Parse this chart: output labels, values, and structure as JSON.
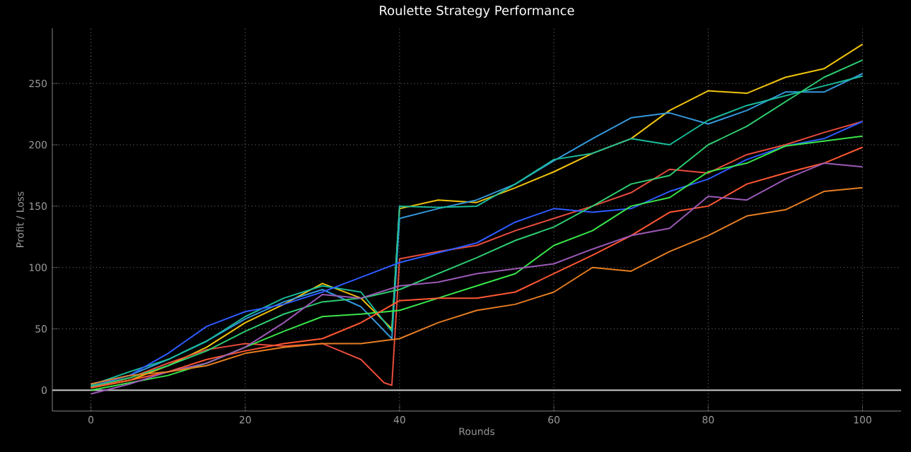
{
  "chart_data": {
    "type": "line",
    "title": "Roulette Strategy Performance",
    "xlabel": "Rounds",
    "ylabel": "Profit / Loss",
    "x": [
      0,
      5,
      10,
      15,
      20,
      25,
      30,
      35,
      40,
      45,
      50,
      55,
      60,
      65,
      70,
      75,
      80,
      85,
      90,
      95,
      100
    ],
    "xlim": [
      -5,
      105
    ],
    "ylim": [
      -17,
      295
    ],
    "xticks": [
      0,
      20,
      40,
      60,
      80,
      100
    ],
    "yticks": [
      0,
      50,
      100,
      150,
      200,
      250
    ],
    "grid": true,
    "marker": "none",
    "line_style": "solid",
    "ref_lines": [
      {
        "axis": "y",
        "value": 0,
        "color": "#cccccc"
      }
    ],
    "series": [
      {
        "color": "#f1c40f",
        "x": [
          0,
          5,
          10,
          15,
          20,
          25,
          30,
          35,
          39,
          40,
          45,
          50,
          55,
          60,
          65,
          70,
          75,
          80,
          85,
          90,
          95,
          100
        ],
        "values": [
          2,
          8,
          20,
          35,
          55,
          70,
          87,
          75,
          50,
          148,
          155,
          153,
          165,
          178,
          193,
          205,
          228,
          244,
          242,
          255,
          262,
          282
        ]
      },
      {
        "color": "#3498db",
        "x": [
          0,
          5,
          10,
          15,
          20,
          25,
          30,
          35,
          39,
          40,
          45,
          50,
          55,
          60,
          65,
          70,
          75,
          80,
          85,
          90,
          95,
          100
        ],
        "values": [
          5,
          12,
          25,
          40,
          58,
          72,
          82,
          68,
          42,
          140,
          148,
          155,
          168,
          187,
          205,
          222,
          226,
          217,
          228,
          243,
          243,
          258
        ]
      },
      {
        "color": "#1abc9c",
        "x": [
          0,
          5,
          10,
          15,
          20,
          25,
          30,
          35,
          39,
          40,
          45,
          50,
          55,
          60,
          65,
          70,
          75,
          80,
          85,
          90,
          95,
          100
        ],
        "values": [
          4,
          15,
          25,
          40,
          60,
          75,
          85,
          80,
          48,
          150,
          149,
          150,
          168,
          188,
          193,
          205,
          200,
          220,
          232,
          240,
          248,
          256
        ]
      },
      {
        "color": "#e74c3c",
        "x": [
          0,
          5,
          10,
          15,
          20,
          25,
          30,
          35,
          38,
          39,
          40,
          45,
          50,
          55,
          60,
          65,
          70,
          75,
          80,
          85,
          90,
          95,
          100
        ],
        "values": [
          2,
          10,
          22,
          33,
          38,
          36,
          38,
          25,
          6,
          4,
          107,
          113,
          118,
          130,
          140,
          150,
          161,
          180,
          177,
          192,
          200,
          210,
          219
        ]
      },
      {
        "color": "#2e5bff",
        "values": [
          3,
          12,
          30,
          52,
          64,
          70,
          80,
          92,
          104,
          112,
          120,
          137,
          148,
          145,
          148,
          162,
          172,
          188,
          199,
          205,
          219
        ]
      },
      {
        "color": "#2ecc71",
        "values": [
          3,
          10,
          20,
          32,
          48,
          62,
          72,
          75,
          82,
          95,
          108,
          122,
          133,
          150,
          168,
          175,
          200,
          215,
          235,
          255,
          269
        ]
      },
      {
        "color": "#39e64a",
        "values": [
          0,
          6,
          12,
          22,
          35,
          48,
          60,
          62,
          65,
          75,
          85,
          95,
          118,
          130,
          150,
          157,
          178,
          185,
          199,
          203,
          207
        ]
      },
      {
        "color": "#ff5733",
        "values": [
          2,
          8,
          15,
          25,
          32,
          38,
          42,
          55,
          73,
          75,
          75,
          80,
          95,
          110,
          126,
          145,
          150,
          168,
          177,
          185,
          198
        ]
      },
      {
        "color": "#9b59b6",
        "values": [
          -3,
          5,
          15,
          22,
          35,
          55,
          78,
          75,
          85,
          88,
          95,
          99,
          103,
          115,
          126,
          132,
          158,
          155,
          172,
          185,
          182
        ]
      },
      {
        "color": "#e67e22",
        "values": [
          5,
          12,
          15,
          20,
          30,
          35,
          38,
          38,
          42,
          55,
          65,
          70,
          80,
          100,
          97,
          113,
          126,
          142,
          147,
          162,
          165
        ]
      }
    ]
  }
}
